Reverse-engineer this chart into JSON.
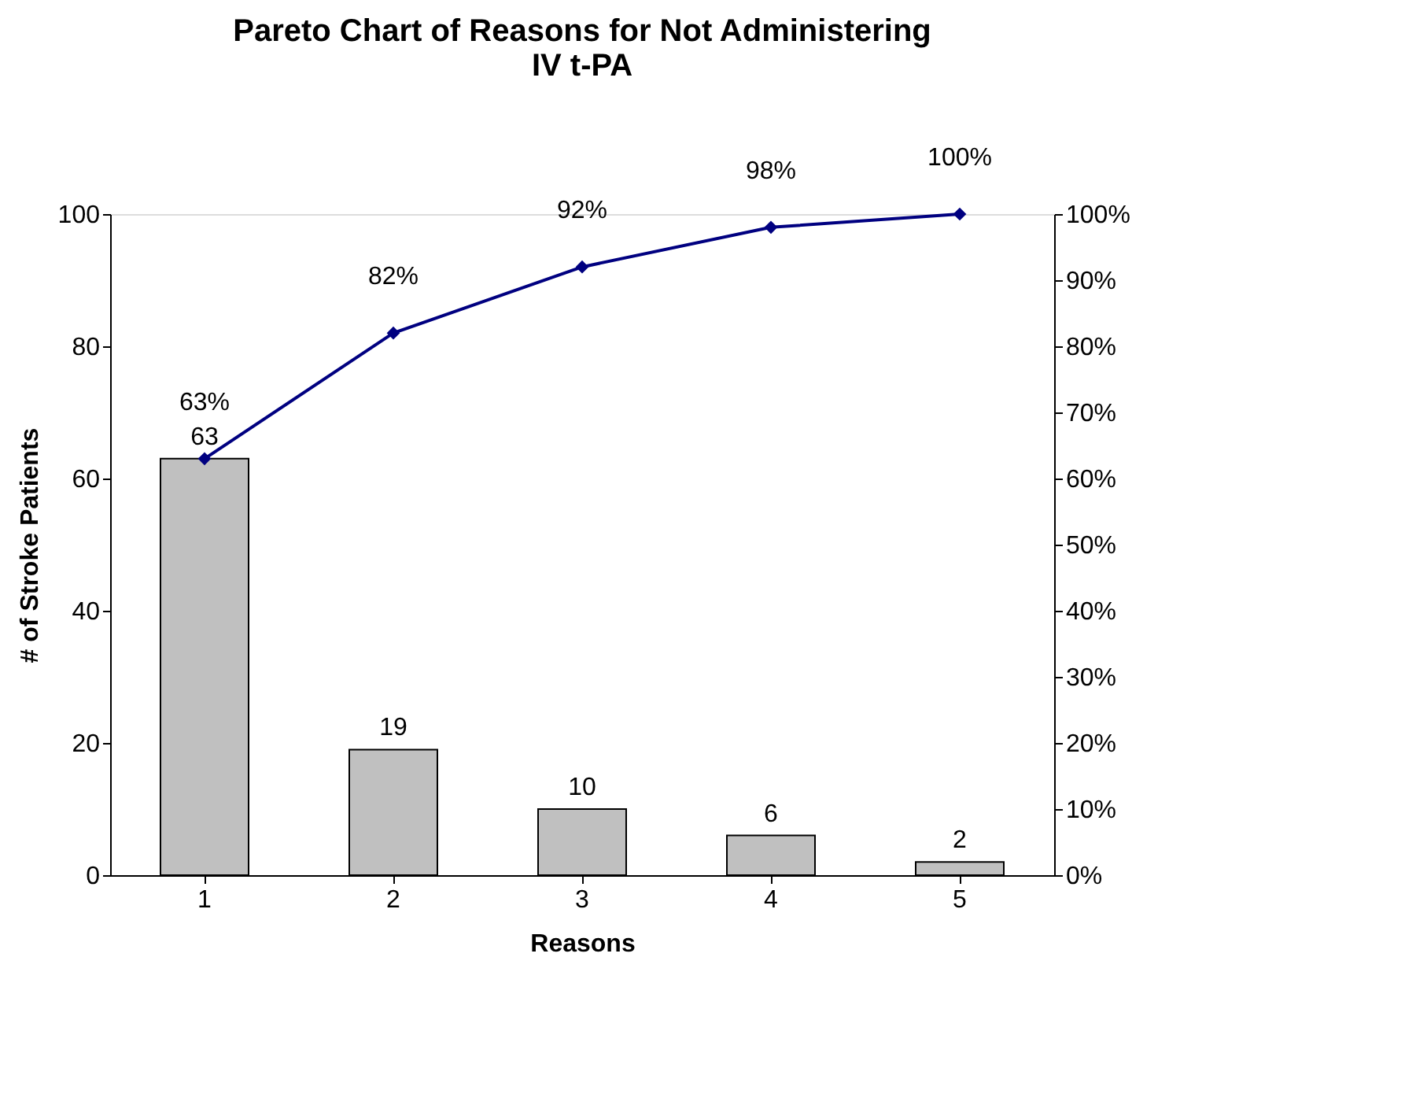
{
  "chart_data": {
    "type": "bar",
    "title": "Pareto Chart of Reasons for Not Administering IV t-PA",
    "xlabel": "Reasons",
    "ylabel": "# of Stroke Patients",
    "categories": [
      "1",
      "2",
      "3",
      "4",
      "5"
    ],
    "series": [
      {
        "color": "#c0c0c0",
        "values": [
          63,
          19,
          10,
          6,
          2
        ]
      },
      {
        "type": "line",
        "axis": "y2",
        "color": "#000080",
        "values": [
          63,
          82,
          92,
          98,
          100
        ],
        "value_labels": [
          "63%",
          "82%",
          "92%",
          "98%",
          "100%"
        ]
      }
    ],
    "ylim": [
      0,
      100
    ],
    "yticks": [
      0,
      20,
      40,
      60,
      80,
      100
    ],
    "y2lim": [
      0,
      100
    ],
    "y2ticks": [
      {
        "value": 0,
        "label": "0%"
      },
      {
        "value": 10,
        "label": "10%"
      },
      {
        "value": 20,
        "label": "20%"
      },
      {
        "value": 30,
        "label": "30%"
      },
      {
        "value": 40,
        "label": "40%"
      },
      {
        "value": 50,
        "label": "50%"
      },
      {
        "value": 60,
        "label": "60%"
      },
      {
        "value": 70,
        "label": "70%"
      },
      {
        "value": 80,
        "label": "80%"
      },
      {
        "value": 90,
        "label": "90%"
      },
      {
        "value": 100,
        "label": "100%"
      }
    ],
    "data_labels": true,
    "marker": "diamond",
    "line_style": "solid",
    "grid": false
  }
}
